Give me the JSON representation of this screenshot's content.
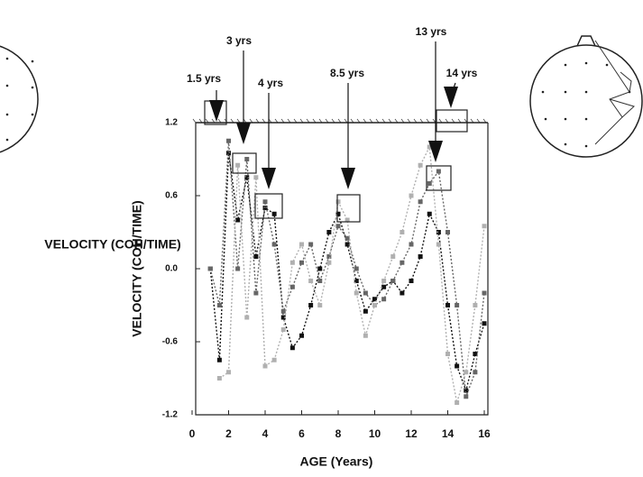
{
  "chart_data": {
    "type": "line",
    "y_label": "VELOCITY (COH/TIME)",
    "x_label": "AGE (Years)",
    "annotations": [
      "1.5 yrs",
      "3 yrs",
      "4 yrs",
      "8.5 yrs",
      "13 yrs",
      "14 yrs"
    ],
    "x": [
      1,
      1.5,
      2,
      2.5,
      3,
      3.5,
      4,
      4.5,
      5,
      5.5,
      6,
      6.5,
      7,
      7.5,
      8,
      8.5,
      9,
      9.5,
      10,
      10.5,
      11,
      11.5,
      12,
      12.5,
      13,
      13.5,
      14,
      14.5,
      15,
      15.5,
      16
    ],
    "series": [
      {
        "color": "#111111",
        "values": [
          0.0,
          -0.75,
          0.95,
          0.4,
          0.75,
          0.1,
          0.5,
          0.45,
          -0.4,
          -0.65,
          -0.55,
          -0.3,
          0.0,
          0.3,
          0.45,
          0.2,
          -0.1,
          -0.35,
          -0.25,
          -0.15,
          -0.1,
          -0.2,
          -0.1,
          0.1,
          0.45,
          0.3,
          -0.3,
          -0.8,
          -1.0,
          -0.7,
          -0.45
        ]
      },
      {
        "color": "#666666",
        "values": [
          0.0,
          -0.3,
          1.05,
          0.0,
          0.9,
          -0.2,
          0.55,
          0.2,
          -0.35,
          -0.15,
          0.05,
          0.2,
          -0.1,
          0.1,
          0.35,
          0.25,
          0.0,
          -0.2,
          -0.3,
          -0.25,
          -0.1,
          0.05,
          0.2,
          0.55,
          0.7,
          0.8,
          0.3,
          -0.3,
          -1.05,
          -0.85,
          -0.2
        ]
      },
      {
        "color": "#b0b0b0",
        "values": [
          null,
          -0.9,
          -0.85,
          0.85,
          -0.4,
          0.75,
          -0.8,
          -0.75,
          -0.5,
          0.05,
          0.2,
          -0.1,
          -0.3,
          0.05,
          0.55,
          0.4,
          -0.2,
          -0.55,
          -0.3,
          -0.1,
          0.1,
          0.3,
          0.6,
          0.85,
          1.0,
          0.2,
          -0.7,
          -1.1,
          -0.85,
          -0.3,
          0.35
        ]
      }
    ],
    "xlim": [
      0,
      16
    ],
    "xticks": [
      0,
      2,
      4,
      6,
      8,
      10,
      12,
      14,
      16
    ],
    "ylim": [
      -1.2,
      1.2
    ],
    "yticks": [
      -1.2,
      -0.6,
      {
        "value": 0,
        "label": "0.0"
      },
      0.6,
      1.2
    ]
  }
}
